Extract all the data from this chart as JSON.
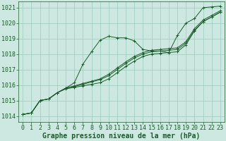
{
  "bg_color": "#cce8e0",
  "grid_color": "#99ccbb",
  "line_color": "#1a5c2a",
  "xlabel": "Graphe pression niveau de la mer (hPa)",
  "xlabel_color": "#1a5c2a",
  "xlim": [
    -0.5,
    23.5
  ],
  "ylim": [
    1013.6,
    1021.4
  ],
  "yticks": [
    1014,
    1015,
    1016,
    1017,
    1018,
    1019,
    1020,
    1021
  ],
  "xticks": [
    0,
    1,
    2,
    3,
    4,
    5,
    6,
    7,
    8,
    9,
    10,
    11,
    12,
    13,
    14,
    15,
    16,
    17,
    18,
    19,
    20,
    21,
    22,
    23
  ],
  "series": [
    [
      1014.1,
      1014.2,
      1015.0,
      1015.1,
      1015.5,
      1015.8,
      1016.15,
      1017.35,
      1018.15,
      1018.9,
      1019.15,
      1019.05,
      1019.05,
      1018.85,
      1018.3,
      1018.2,
      1018.2,
      1018.1,
      1019.2,
      1020.0,
      1020.3,
      1021.0,
      1021.05,
      1021.1
    ],
    [
      1014.1,
      1014.2,
      1015.0,
      1015.1,
      1015.5,
      1015.75,
      1015.85,
      1015.95,
      1016.05,
      1016.15,
      1016.4,
      1016.8,
      1017.2,
      1017.55,
      1017.85,
      1018.0,
      1018.05,
      1018.1,
      1018.15,
      1018.6,
      1019.5,
      1020.1,
      1020.4,
      1020.7
    ],
    [
      1014.1,
      1014.2,
      1015.0,
      1015.1,
      1015.5,
      1015.8,
      1015.95,
      1016.1,
      1016.25,
      1016.4,
      1016.7,
      1017.1,
      1017.5,
      1017.85,
      1018.1,
      1018.25,
      1018.3,
      1018.35,
      1018.4,
      1018.8,
      1019.65,
      1020.2,
      1020.5,
      1020.8
    ],
    [
      1014.1,
      1014.2,
      1015.0,
      1015.1,
      1015.5,
      1015.8,
      1015.9,
      1016.05,
      1016.2,
      1016.35,
      1016.6,
      1017.0,
      1017.4,
      1017.75,
      1018.0,
      1018.15,
      1018.2,
      1018.25,
      1018.3,
      1018.7,
      1019.55,
      1020.1,
      1020.4,
      1020.72
    ]
  ],
  "fontsize_xlabel": 7,
  "fontsize_ticks": 6
}
